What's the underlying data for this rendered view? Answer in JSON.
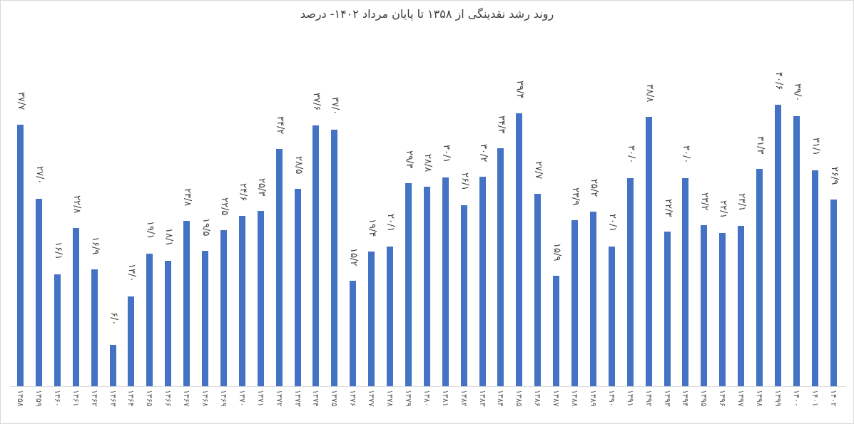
{
  "chart_data": {
    "type": "bar",
    "title": "روند رشد نقدینگی از ۱۳۵۸ تا پایان مرداد ۱۴۰۲- درصد",
    "xlabel": "",
    "ylabel": "",
    "ylim": [
      0,
      42
    ],
    "grid": false,
    "legend": null,
    "bar_color": "#4472c4",
    "categories": [
      "۱۳۵۸",
      "۱۳۵۹",
      "۱۳۶۰",
      "۱۳۶۱",
      "۱۳۶۲",
      "۱۳۶۳",
      "۱۳۶۴",
      "۱۳۶۵",
      "۱۳۶۶",
      "۱۳۶۷",
      "۱۳۶۸",
      "۱۳۶۹",
      "۱۳۷۰",
      "۱۳۷۱",
      "۱۳۷۲",
      "۱۳۷۳",
      "۱۳۷۴",
      "۱۳۷۵",
      "۱۳۷۶",
      "۱۳۷۷",
      "۱۳۷۸",
      "۱۳۷۹",
      "۱۳۸۰",
      "۱۳۸۱",
      "۱۳۸۲",
      "۱۳۸۳",
      "۱۳۸۴",
      "۱۳۸۵",
      "۱۳۸۶",
      "۱۳۸۷",
      "۱۳۸۸",
      "۱۳۸۹",
      "۱۳۹۰",
      "۱۳۹۱",
      "۱۳۹۲",
      "۱۳۹۳",
      "۱۳۹۴",
      "۱۳۹۵",
      "۱۳۹۶",
      "۱۳۹۷",
      "۱۳۹۸",
      "۱۳۹۹",
      "۱۴۰۰",
      "۱۴۰۱",
      "۱۴۰۲"
    ],
    "values": [
      37.7,
      27.0,
      16.1,
      22.8,
      16.9,
      6.0,
      13.0,
      19.1,
      18.1,
      23.8,
      19.5,
      22.5,
      24.6,
      25.3,
      34.2,
      28.5,
      37.6,
      37.0,
      15.2,
      19.4,
      20.1,
      29.3,
      28.8,
      30.1,
      26.1,
      30.2,
      34.3,
      39.4,
      27.7,
      15.9,
      23.9,
      25.2,
      20.1,
      30.0,
      38.8,
      22.3,
      30.0,
      23.2,
      22.1,
      23.1,
      31.3,
      40.6,
      39.0,
      31.1,
      26.9
    ],
    "value_labels": [
      "۳۷/۷",
      "۲۷/۰",
      "۱۶/۱",
      "۲۲/۸",
      "۱۶/۹",
      "۶/۰",
      "۱۳/۰",
      "۱۹/۱",
      "۱۸/۱",
      "۲۳/۸",
      "۱۹/۵",
      "۲۲/۵",
      "۲۴/۶",
      "۲۵/۳",
      "۳۴/۲",
      "۲۸/۵",
      "۳۷/۶",
      "۳۷/۰",
      "۱۵/۲",
      "۱۹/۴",
      "۲۰/۱",
      "۲۹/۳",
      "۲۸/۸",
      "۳۰/۱",
      "۲۶/۱",
      "۳۰/۲",
      "۳۴/۳",
      "۳۹/۴",
      "۲۷/۷",
      "۱۵/۹",
      "۲۳/۹",
      "۲۵/۲",
      "۲۰/۱",
      "۳۰/۰",
      "۳۸/۸",
      "۲۲/۳",
      "۳۰/۰",
      "۲۳/۲",
      "۲۲/۱",
      "۲۳/۱",
      "۳۱/۳",
      "۴۰/۶",
      "۳۹/۰",
      "۳۱/۱",
      "۲۶/۹"
    ]
  }
}
